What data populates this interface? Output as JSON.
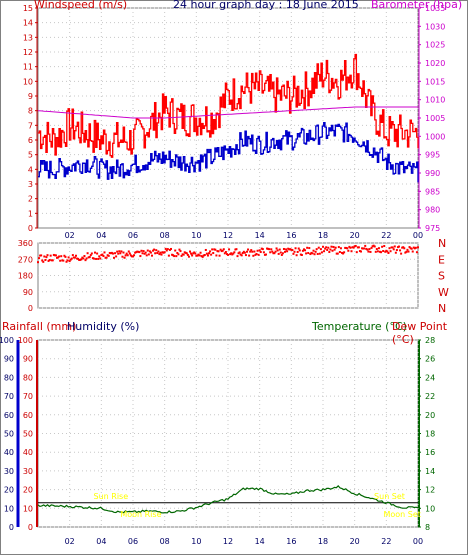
{
  "header": {
    "left_label": "Windspeed (m/s)",
    "title": "24 hour graph day : 18 June 2015",
    "right_label": "Barometer (hpa)",
    "rain_label": "Rainfall (mm)",
    "humidity_label": "Humidity (%)",
    "temp_label": "Temperature (°C)",
    "dew_label": "Dew Point (°C)"
  },
  "colors": {
    "wind_gust": "#ff0000",
    "wind_avg": "#0000cc",
    "barometer": "#cc00cc",
    "direction": "#ff0000",
    "rain": "#0000cc",
    "humidity": "#cc0000",
    "temperature": "#006600",
    "sun": "#ffff00",
    "grid": "#c8c8c8",
    "axis": "#808080"
  },
  "x_ticks": [
    "02",
    "04",
    "06",
    "08",
    "10",
    "12",
    "14",
    "16",
    "18",
    "20",
    "22",
    "00"
  ],
  "wind_axis": {
    "ticks": [
      "0",
      "1",
      "2",
      "3",
      "4",
      "5",
      "6",
      "7",
      "8",
      "9",
      "10",
      "11",
      "12",
      "13",
      "14",
      "15"
    ]
  },
  "baro_axis": {
    "ticks": [
      "975",
      "980",
      "985",
      "990",
      "995",
      "1000",
      "1005",
      "1010",
      "1015",
      "1020",
      "1025",
      "1030",
      "1035"
    ]
  },
  "dir_axis": {
    "ticks": [
      "0",
      "90",
      "180",
      "270",
      "360"
    ],
    "labels": [
      "N",
      "W",
      "S",
      "E",
      "N"
    ]
  },
  "rain_axis": {
    "ticks": [
      "0",
      "10",
      "20",
      "30",
      "40",
      "50",
      "60",
      "70",
      "80",
      "90",
      "100"
    ]
  },
  "hum_axis": {
    "ticks": [
      "0",
      "10",
      "20",
      "30",
      "40",
      "50",
      "60",
      "70",
      "80",
      "90",
      "100"
    ]
  },
  "temp_axis": {
    "ticks": [
      "8",
      "10",
      "12",
      "14",
      "16",
      "18",
      "20",
      "22",
      "24",
      "26",
      "28"
    ]
  },
  "sun": {
    "rise_label": "Sun Rise",
    "set_label": "Sun Set",
    "moonrise_label": "Moon Rise",
    "moonset_label": "Moon Set"
  },
  "chart_data": [
    {
      "type": "line",
      "x_unit": "hour",
      "xlim": [
        0,
        24
      ],
      "series": [
        {
          "name": "Windspeed (m/s)",
          "x": [
            0,
            1,
            2,
            3,
            4,
            5,
            6,
            7,
            8,
            9,
            10,
            11,
            12,
            13,
            14,
            15,
            16,
            17,
            18,
            19,
            20,
            21,
            22,
            23,
            24
          ],
          "values": [
            6.5,
            6,
            7,
            6.5,
            6,
            6,
            6,
            7,
            8,
            7.5,
            7.5,
            7.5,
            9,
            9.5,
            9.5,
            9,
            9,
            9.5,
            10.5,
            10,
            11,
            8,
            6.5,
            6.5,
            6.5
          ]
        },
        {
          "name": "Windspeed avg",
          "x": [
            0,
            1,
            2,
            3,
            4,
            5,
            6,
            7,
            8,
            9,
            10,
            11,
            12,
            13,
            14,
            15,
            16,
            17,
            18,
            19,
            20,
            21,
            22,
            23,
            24
          ],
          "values": [
            4,
            4,
            4.2,
            4.5,
            4,
            4,
            4.3,
            4.6,
            4.8,
            4.5,
            4.5,
            4.8,
            5.3,
            6,
            5.7,
            6,
            6,
            6.2,
            6.5,
            6.6,
            6.3,
            5.5,
            4.5,
            4,
            3.8
          ]
        },
        {
          "name": "Barometer (hpa)",
          "x": [
            0,
            3,
            6,
            8,
            12,
            16,
            20,
            24
          ],
          "values": [
            1007,
            1006,
            1005,
            1005,
            1006,
            1007,
            1008,
            1008
          ]
        }
      ],
      "ylim": [
        0,
        15
      ],
      "ylim_right": [
        975,
        1035
      ]
    },
    {
      "type": "scatter",
      "name": "Wind direction",
      "x": [
        0,
        1,
        2,
        3,
        4,
        5,
        6,
        7,
        8,
        9,
        10,
        11,
        12,
        13,
        14,
        15,
        16,
        17,
        18,
        19,
        20,
        21,
        22,
        23,
        24
      ],
      "values": [
        270,
        280,
        275,
        285,
        290,
        295,
        300,
        305,
        310,
        305,
        300,
        305,
        310,
        305,
        310,
        315,
        310,
        315,
        320,
        320,
        325,
        330,
        325,
        320,
        325
      ],
      "ylim": [
        0,
        360
      ]
    },
    {
      "type": "line",
      "x_unit": "hour",
      "xlim": [
        0,
        24
      ],
      "series": [
        {
          "name": "Temperature (°C)",
          "x": [
            0,
            2,
            4,
            5,
            6,
            7,
            8,
            9,
            10,
            11,
            12,
            13,
            14,
            15,
            16,
            17,
            18,
            19,
            20,
            21,
            22,
            23,
            24
          ],
          "values": [
            10.3,
            10.2,
            10,
            9.6,
            9.6,
            9.7,
            9.6,
            9.7,
            10.1,
            10.6,
            11,
            12.1,
            12.1,
            11.5,
            11.5,
            11.9,
            12,
            12.3,
            11.6,
            11.1,
            10.6,
            10.1,
            10
          ]
        },
        {
          "name": "Dew Point (°C)",
          "x": [
            0,
            24
          ],
          "values": [
            10.6,
            10.6
          ]
        }
      ],
      "ylim_left": [
        0,
        100
      ],
      "ylim_right": [
        8,
        28
      ]
    }
  ]
}
